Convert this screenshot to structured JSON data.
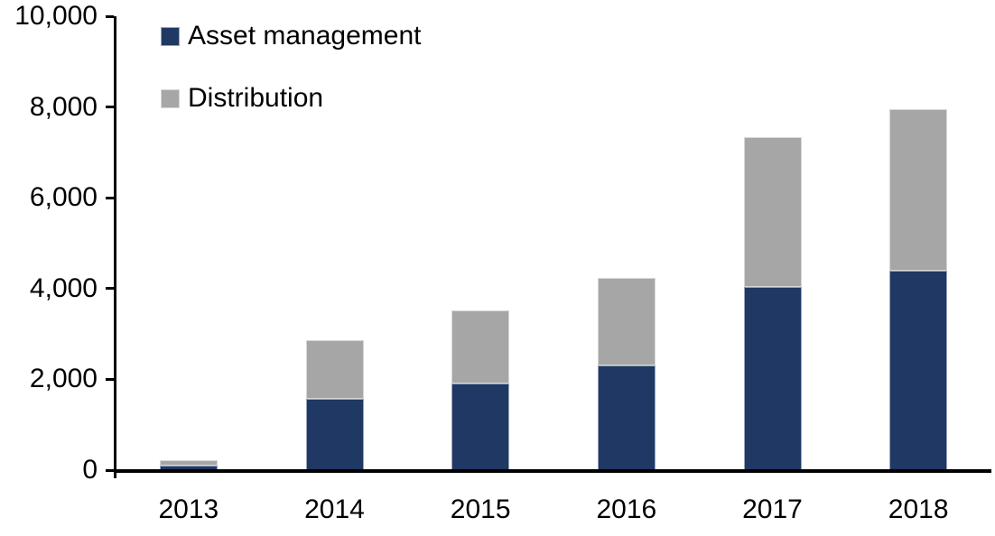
{
  "chart_data": {
    "type": "bar",
    "stacked": true,
    "title": "",
    "xlabel": "",
    "ylabel": "",
    "categories": [
      "2013",
      "2014",
      "2015",
      "2016",
      "2017",
      "2018"
    ],
    "series": [
      {
        "name": "Asset management",
        "color": "#1F3864",
        "values": [
          100,
          1580,
          1900,
          2310,
          4040,
          4400
        ]
      },
      {
        "name": "Distribution",
        "color": "#A6A6A6",
        "values": [
          120,
          1290,
          1610,
          1930,
          3300,
          3560
        ]
      }
    ],
    "totals": [
      220,
      2870,
      3510,
      4240,
      7340,
      7960
    ],
    "ylim": [
      0,
      10000
    ],
    "yticks": [
      0,
      2000,
      4000,
      6000,
      8000,
      10000
    ],
    "yticklabels": [
      "0",
      "2,000",
      "4,000",
      "6,000",
      "8,000",
      "10,000"
    ],
    "grid": false,
    "legend_position": "top-left",
    "axis_color": "#000000",
    "background_color": "#FFFFFF"
  }
}
